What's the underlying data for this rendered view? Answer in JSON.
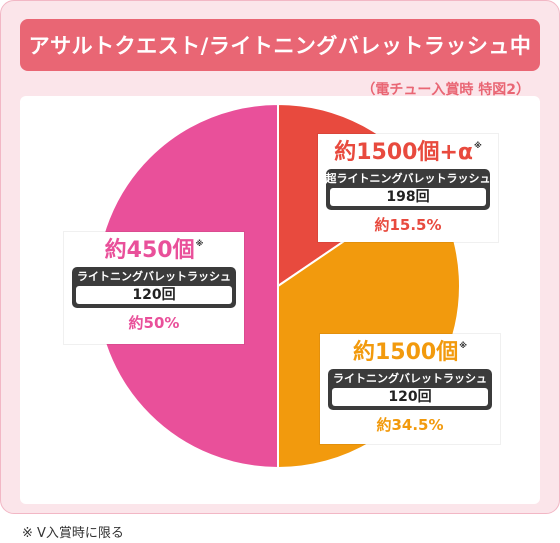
{
  "title": "アサルトクエスト/ライトニングバレットラッシュ中",
  "subtitle": "（電チュー入賞時 特図2）",
  "footnote": "※ V入賞時に限る",
  "colors": {
    "frame": "#fbe5ea",
    "title_bg": "#e96674",
    "red": "#e84a3e",
    "orange": "#f29a0d",
    "pink": "#e9509a",
    "dark": "#3b3b3b"
  },
  "chart_data": {
    "type": "pie",
    "start": "top",
    "direction": "clockwise",
    "slices": [
      {
        "key": "red",
        "value": 15.5,
        "color": "#e84a3e",
        "payout": "約1500個+α",
        "mark": "※",
        "mode": "超ライトニングバレットラッシュ",
        "count": "198回",
        "percent_label": "約15.5%"
      },
      {
        "key": "orange",
        "value": 34.5,
        "color": "#f29a0d",
        "payout": "約1500個",
        "mark": "※",
        "mode": "ライトニングバレットラッシュ",
        "count": "120回",
        "percent_label": "約34.5%"
      },
      {
        "key": "pink",
        "value": 50,
        "color": "#e9509a",
        "payout": "約450個",
        "mark": "※",
        "mode": "ライトニングバレットラッシュ",
        "count": "120回",
        "percent_label": "約50%"
      }
    ]
  }
}
